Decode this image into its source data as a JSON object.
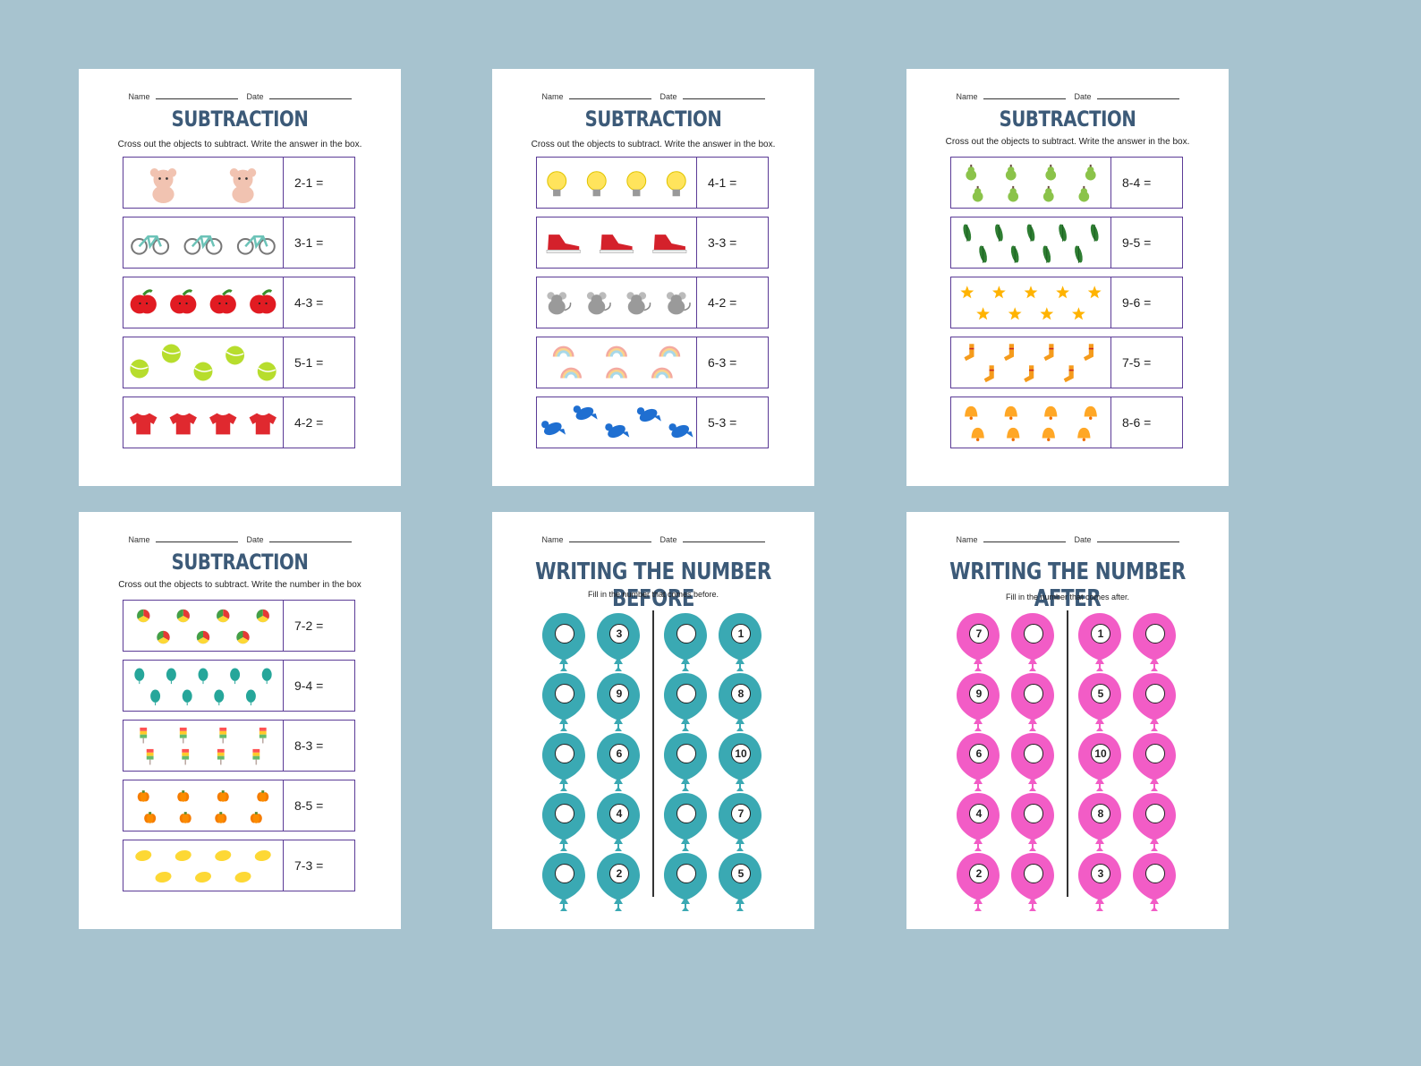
{
  "labels": {
    "name": "Name",
    "date": "Date"
  },
  "sheets": [
    {
      "title": "SUBTRACTION",
      "instruction": "Cross out the objects to subtract. Write the answer in the box.",
      "rows": [
        {
          "item": "teddy-bear-icon",
          "count": 2,
          "color": "#f1c3b1",
          "equation": "2-1 ="
        },
        {
          "item": "bicycle-icon",
          "count": 3,
          "color": "#6cc3b8",
          "equation": "3-1 ="
        },
        {
          "item": "apple-icon",
          "count": 4,
          "color": "#e11b22",
          "equation": "4-3 ="
        },
        {
          "item": "tennis-ball-icon",
          "count": 5,
          "color": "#b7dd2d",
          "equation": "5-1 ="
        },
        {
          "item": "t-shirt-icon",
          "count": 4,
          "color": "#e0292f",
          "equation": "4-2 ="
        }
      ]
    },
    {
      "title": "SUBTRACTION",
      "instruction": "Cross out the objects to subtract. Write the answer in the box.",
      "rows": [
        {
          "item": "light-bulb-icon",
          "count": 4,
          "color": "#ffe45c",
          "equation": "4-1 ="
        },
        {
          "item": "sneaker-icon",
          "count": 3,
          "color": "#d4212b",
          "equation": "3-3 ="
        },
        {
          "item": "mouse-icon",
          "count": 4,
          "color": "#9a9a9a",
          "equation": "4-2 ="
        },
        {
          "item": "rainbow-icon",
          "count": 6,
          "color": "#f4a9a0",
          "equation": "6-3 ="
        },
        {
          "item": "bird-icon",
          "count": 5,
          "color": "#1f6fd1",
          "equation": "5-3 ="
        }
      ]
    },
    {
      "title": "SUBTRACTION",
      "instruction": "Cross out the objects to subtract. Write the answer in the box.",
      "rows": [
        {
          "item": "pear-icon",
          "count": 8,
          "color": "#8bc34a",
          "equation": "8-4 ="
        },
        {
          "item": "leaf-icon",
          "count": 9,
          "color": "#2e7d32",
          "equation": "9-5 ="
        },
        {
          "item": "star-icon",
          "count": 9,
          "color": "#ffb300",
          "equation": "9-6 ="
        },
        {
          "item": "sock-icon",
          "count": 7,
          "color": "#f59b1c",
          "equation": "7-5 ="
        },
        {
          "item": "bell-icon",
          "count": 8,
          "color": "#ffa726",
          "equation": "8-6 ="
        }
      ]
    },
    {
      "title": "SUBTRACTION",
      "instruction": "Cross out the objects to subtract. Write the number in the box",
      "rows": [
        {
          "item": "beach-ball-icon",
          "count": 7,
          "color": "#e53935",
          "equation": "7-2 ="
        },
        {
          "item": "balloon-icon",
          "count": 9,
          "color": "#26a69a",
          "equation": "9-4 ="
        },
        {
          "item": "popsicle-icon",
          "count": 8,
          "color": "#ff7043",
          "equation": "8-3 ="
        },
        {
          "item": "pumpkin-icon",
          "count": 8,
          "color": "#f57c00",
          "equation": "8-5 ="
        },
        {
          "item": "lemon-icon",
          "count": 7,
          "color": "#fdd835",
          "equation": "7-3 ="
        }
      ]
    },
    {
      "title": "WRITING THE NUMBER BEFORE",
      "instruction": "Fill in the number that comes before.",
      "balloon_color": "#3aa9b3",
      "left_numbers": [
        "3",
        "9",
        "6",
        "4",
        "2"
      ],
      "right_numbers": [
        "1",
        "8",
        "10",
        "7",
        "5"
      ]
    },
    {
      "title": "WRITING THE NUMBER AFTER",
      "instruction": "Fill in the number that comes after.",
      "balloon_color": "#f25cc6",
      "left_numbers": [
        "7",
        "9",
        "6",
        "4",
        "2"
      ],
      "right_numbers": [
        "1",
        "5",
        "10",
        "8",
        "3"
      ]
    }
  ]
}
